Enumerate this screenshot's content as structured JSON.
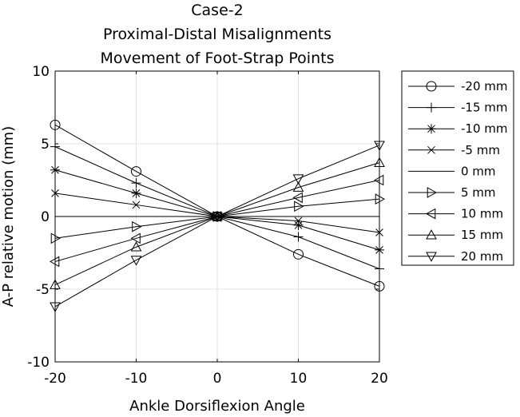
{
  "chart_data": {
    "type": "line",
    "title": [
      "Case-2",
      "Proximal-Distal Misalignments",
      "Movement of Foot-Strap Points"
    ],
    "xlabel": "Ankle Dorsiflexion Angle",
    "ylabel": "A-P relative motion (mm)",
    "xlim": [
      -20,
      20
    ],
    "ylim": [
      -10,
      10
    ],
    "xticks": [
      -20,
      -10,
      0,
      10,
      20
    ],
    "yticks": [
      -10,
      -5,
      0,
      5,
      10
    ],
    "xtick_labels": [
      "-20",
      "-10",
      "0",
      "10",
      "20"
    ],
    "ytick_labels": [
      "-10",
      "-5",
      "0",
      "5",
      "10"
    ],
    "grid": true,
    "legend_position": "outside-right",
    "line_color": "#000000",
    "x": [
      -20,
      -10,
      0,
      10,
      20
    ],
    "series": [
      {
        "name": "-20 mm",
        "marker": "circle",
        "values": [
          6.3,
          3.1,
          0,
          -2.6,
          -4.8
        ]
      },
      {
        "name": "-15 mm",
        "marker": "plus",
        "values": [
          4.8,
          2.3,
          0,
          -1.4,
          -3.6
        ]
      },
      {
        "name": "-10 mm",
        "marker": "asterisk",
        "values": [
          3.2,
          1.6,
          0,
          -0.6,
          -2.3
        ]
      },
      {
        "name": "-5 mm",
        "marker": "x",
        "values": [
          1.6,
          0.8,
          0,
          -0.3,
          -1.1
        ]
      },
      {
        "name": "0 mm",
        "marker": "none",
        "values": [
          0,
          0,
          0,
          0,
          0
        ]
      },
      {
        "name": "5 mm",
        "marker": "triangle-right",
        "values": [
          -1.5,
          -0.7,
          0,
          0.7,
          1.2
        ]
      },
      {
        "name": "10 mm",
        "marker": "triangle-left",
        "values": [
          -3.1,
          -1.5,
          0,
          1.3,
          2.5
        ]
      },
      {
        "name": "15 mm",
        "marker": "triangle-up",
        "values": [
          -4.7,
          -2.1,
          0,
          2.0,
          3.7
        ]
      },
      {
        "name": "20 mm",
        "marker": "triangle-down",
        "values": [
          -6.2,
          -3.0,
          0,
          2.6,
          4.9
        ]
      }
    ]
  }
}
